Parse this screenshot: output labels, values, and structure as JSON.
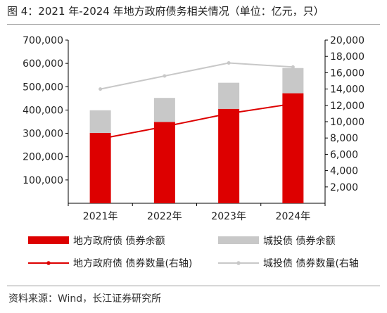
{
  "title": "图 4：2021 年-2024 年地方政府债务相关情况（单位：亿元，只）",
  "source": "资料来源：Wind，长江证券研究所",
  "chart_data": {
    "type": "bar",
    "categories": [
      "2021年",
      "2022年",
      "2023年",
      "2024年"
    ],
    "series": [
      {
        "name": "地方政府债 债券余额",
        "kind": "bar",
        "axis": "left",
        "stack": "total",
        "color": "#dd0000",
        "values": [
          302000,
          349000,
          405000,
          472000
        ]
      },
      {
        "name": "城投债 债券余额",
        "kind": "bar",
        "axis": "left",
        "stack": "total",
        "color": "#c8c8c8",
        "values": [
          97000,
          103000,
          112000,
          108000
        ]
      },
      {
        "name": "地方政府债 债券数量(右轴)",
        "kind": "line",
        "axis": "right",
        "color": "#dd0000",
        "values": [
          7900,
          9400,
          11000,
          12200
        ]
      },
      {
        "name": "城投债 债券数量(右轴",
        "kind": "line",
        "axis": "right",
        "color": "#c8c8c8",
        "values": [
          14000,
          15600,
          17200,
          16700
        ]
      }
    ],
    "ylim": [
      0,
      700000
    ],
    "yticks": [
      100000,
      200000,
      300000,
      400000,
      500000,
      600000,
      700000
    ],
    "ytick_labels": [
      "100,000",
      "200,000",
      "300,000",
      "400,000",
      "500,000",
      "600,000",
      "700,000"
    ],
    "y2lim": [
      0,
      20000
    ],
    "y2ticks": [
      2000,
      4000,
      6000,
      8000,
      10000,
      12000,
      14000,
      16000,
      18000,
      20000
    ],
    "y2tick_labels": [
      "2,000",
      "4,000",
      "6,000",
      "8,000",
      "10,000",
      "12,000",
      "14,000",
      "16,000",
      "18,000",
      "20,000"
    ],
    "grid": false,
    "legend_position": "bottom"
  }
}
